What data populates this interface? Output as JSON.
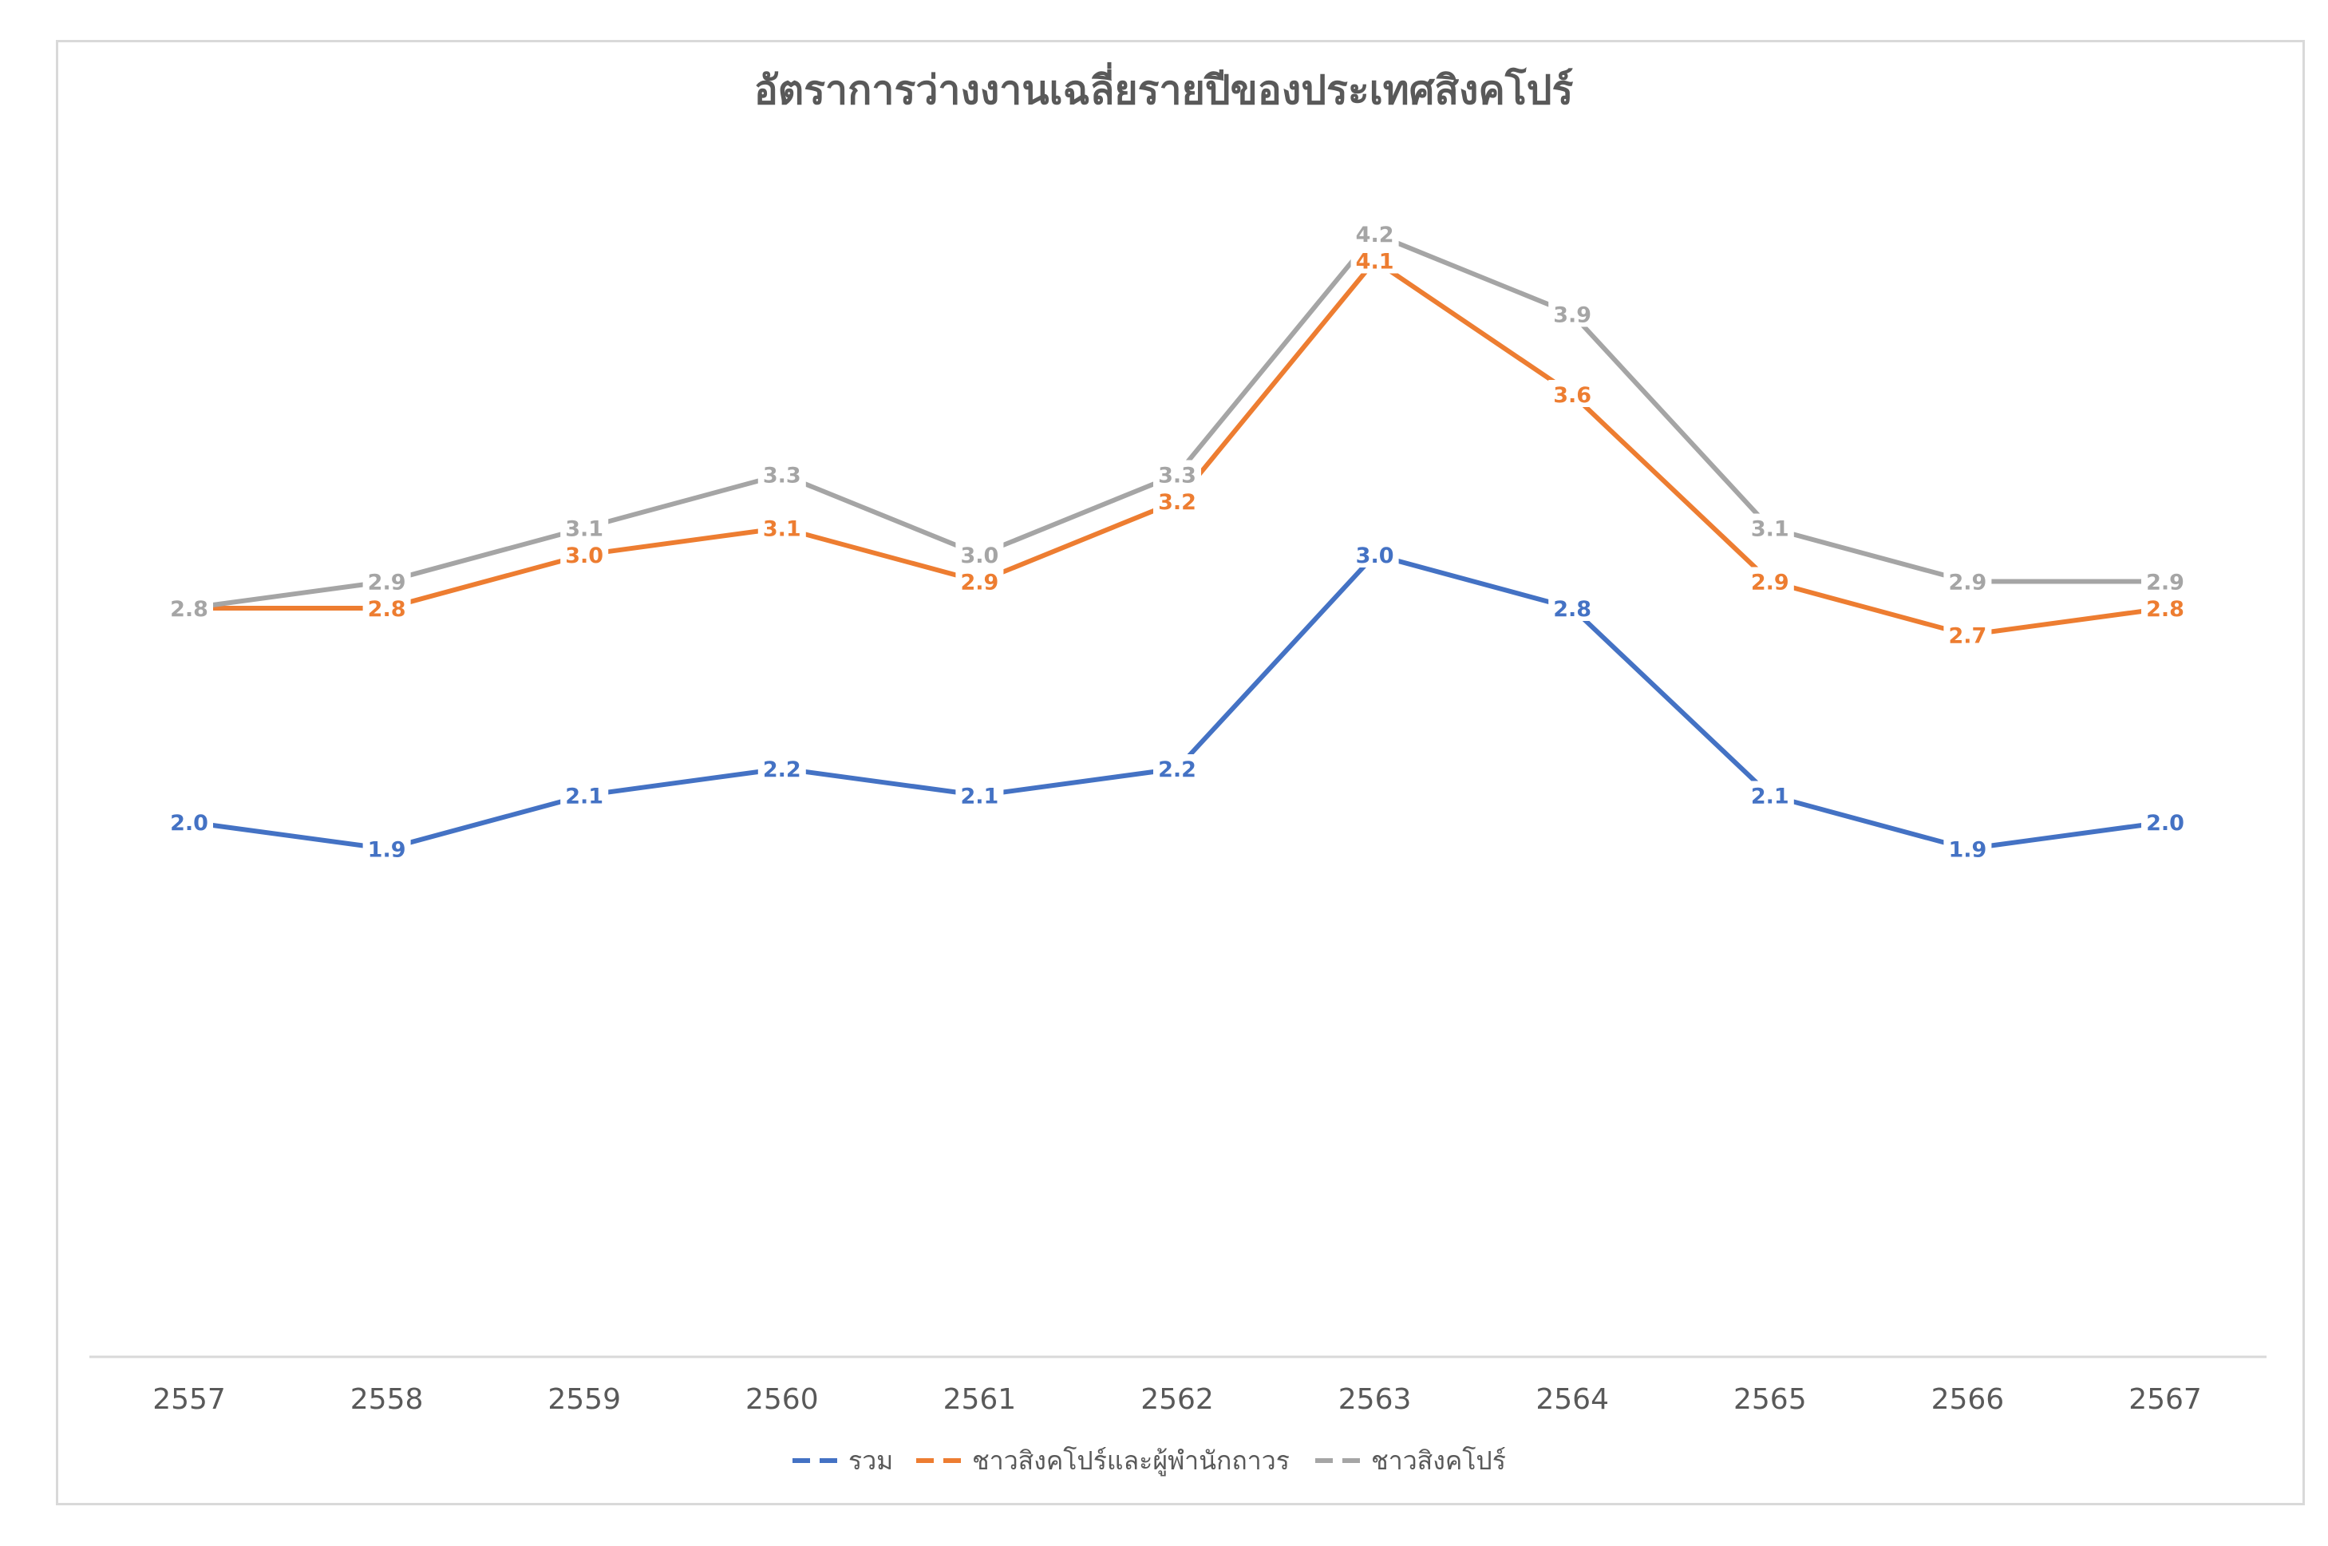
{
  "chart_data": {
    "type": "line",
    "title": "อัตราการว่างงานเฉลี่ยรายปีของประเทศสิงคโปร์",
    "categories": [
      "2557",
      "2558",
      "2559",
      "2560",
      "2561",
      "2562",
      "2563",
      "2564",
      "2565",
      "2566",
      "2567"
    ],
    "ylim": [
      0,
      5
    ],
    "grid": false,
    "legend_position": "bottom",
    "data_labels": true,
    "series": [
      {
        "name": "รวม",
        "color": "#4472C4",
        "values": [
          2.0,
          1.9,
          2.1,
          2.2,
          2.1,
          2.2,
          3.0,
          2.8,
          2.1,
          1.9,
          2.0
        ]
      },
      {
        "name": "ชาวสิงคโปร์และผู้พำนักถาวร",
        "color": "#ED7D31",
        "values": [
          2.8,
          2.8,
          3.0,
          3.1,
          2.9,
          3.2,
          4.1,
          3.6,
          2.9,
          2.7,
          2.8
        ]
      },
      {
        "name": "ชาวสิงคโปร์",
        "color": "#A5A5A5",
        "values": [
          2.8,
          2.9,
          3.1,
          3.3,
          3.0,
          3.3,
          4.2,
          3.9,
          3.1,
          2.9,
          2.9
        ]
      }
    ]
  }
}
